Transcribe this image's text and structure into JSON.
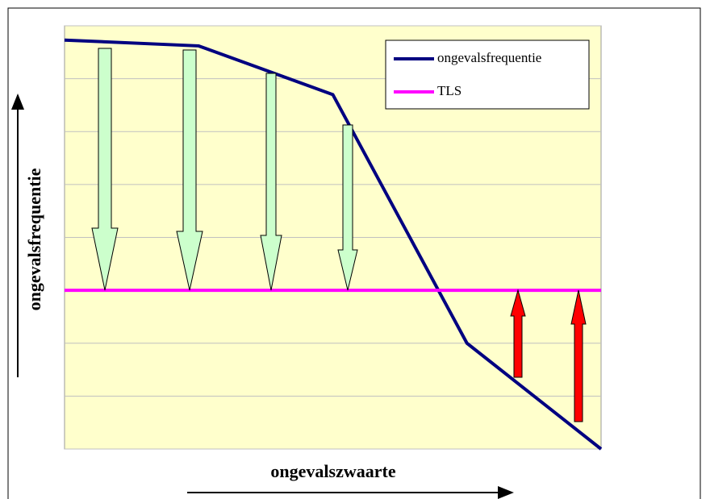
{
  "chart_data": {
    "type": "line",
    "xlabel": "ongevalszwaarte",
    "ylabel": "ongevalsfrequentie",
    "xlim": [
      0,
      10
    ],
    "ylim": [
      0,
      8
    ],
    "yticks": [
      0,
      1,
      2,
      3,
      4,
      5,
      6,
      7,
      8
    ],
    "grid": true,
    "legend": "upper right",
    "series": [
      {
        "name": "ongevalsfrequentie",
        "color": "#000080",
        "x": [
          0,
          2.5,
          5,
          7.5,
          10
        ],
        "values": [
          7.73,
          7.62,
          6.7,
          2.0,
          0
        ]
      },
      {
        "name": "TLS",
        "color": "#ff00ff",
        "x": [
          0,
          10
        ],
        "values": [
          3,
          3
        ]
      }
    ]
  }
}
